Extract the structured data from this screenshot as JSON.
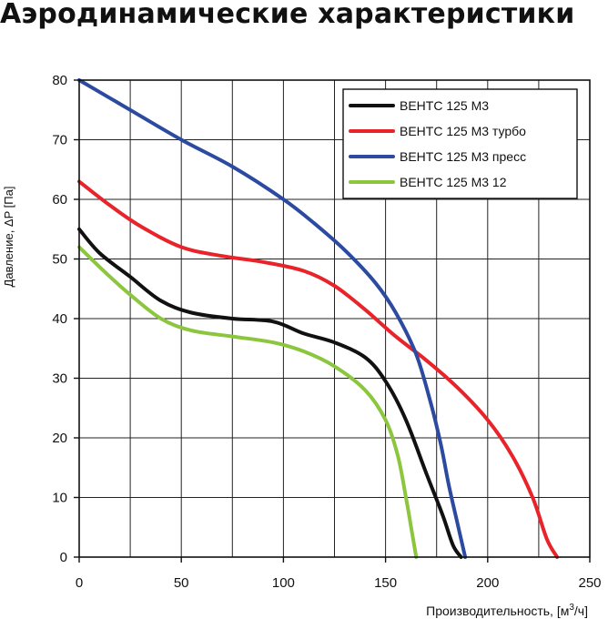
{
  "title": "Аэродинамические характеристики",
  "chart_data": {
    "type": "line",
    "xlabel_main": "Производительность, [м",
    "xlabel_sup": "3",
    "xlabel_tail": "/ч]",
    "ylabel": "Давление, ΔP [Па]",
    "xlim": [
      0,
      250
    ],
    "ylim": [
      0,
      80
    ],
    "xticks": [
      0,
      50,
      100,
      150,
      200,
      250
    ],
    "yticks": [
      0,
      10,
      20,
      30,
      40,
      50,
      60,
      70,
      80
    ],
    "grid": true,
    "legend_position": "top-right",
    "series": [
      {
        "name": "ВЕНТС 125 М3",
        "color": "#111111",
        "points": [
          [
            0,
            55
          ],
          [
            10,
            51
          ],
          [
            25,
            47
          ],
          [
            40,
            43
          ],
          [
            55,
            41
          ],
          [
            75,
            40
          ],
          [
            95,
            39.5
          ],
          [
            110,
            37.5
          ],
          [
            125,
            36
          ],
          [
            140,
            33.5
          ],
          [
            150,
            29.5
          ],
          [
            160,
            23
          ],
          [
            170,
            14
          ],
          [
            178,
            7
          ],
          [
            183,
            2
          ],
          [
            187,
            0
          ]
        ]
      },
      {
        "name": "ВЕНТС 125 М3 турбо",
        "color": "#e8232a",
        "points": [
          [
            0,
            63
          ],
          [
            15,
            59
          ],
          [
            30,
            55.5
          ],
          [
            50,
            52
          ],
          [
            70,
            50.5
          ],
          [
            90,
            49.5
          ],
          [
            110,
            48
          ],
          [
            125,
            45.5
          ],
          [
            140,
            41.5
          ],
          [
            155,
            37
          ],
          [
            170,
            33
          ],
          [
            185,
            28.5
          ],
          [
            200,
            23
          ],
          [
            212,
            17
          ],
          [
            222,
            10
          ],
          [
            229,
            3
          ],
          [
            234,
            0
          ]
        ]
      },
      {
        "name": "ВЕНТС 125 М3 пресс",
        "color": "#2b4aa0",
        "points": [
          [
            0,
            80
          ],
          [
            25,
            75
          ],
          [
            50,
            70
          ],
          [
            75,
            65.5
          ],
          [
            100,
            60
          ],
          [
            115,
            56
          ],
          [
            130,
            51.5
          ],
          [
            145,
            46
          ],
          [
            155,
            41
          ],
          [
            165,
            34
          ],
          [
            172,
            26
          ],
          [
            177,
            19
          ],
          [
            181,
            12
          ],
          [
            185,
            6
          ],
          [
            189,
            0
          ]
        ]
      },
      {
        "name": "ВЕНТС 125 М3  12",
        "color": "#8cc63e",
        "points": [
          [
            0,
            52
          ],
          [
            12,
            48
          ],
          [
            25,
            44
          ],
          [
            40,
            40
          ],
          [
            55,
            38
          ],
          [
            75,
            37
          ],
          [
            95,
            36
          ],
          [
            110,
            34.5
          ],
          [
            125,
            32
          ],
          [
            140,
            28
          ],
          [
            150,
            23
          ],
          [
            156,
            17
          ],
          [
            160,
            10
          ],
          [
            163,
            4
          ],
          [
            165,
            0
          ]
        ]
      }
    ]
  }
}
